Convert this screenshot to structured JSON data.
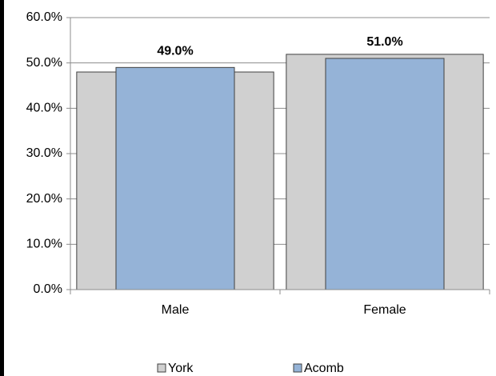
{
  "chart_data": {
    "type": "bar",
    "categories": [
      "Male",
      "Female"
    ],
    "series": [
      {
        "name": "York",
        "color": "#d0d0d0",
        "values": [
          48.0,
          51.9
        ]
      },
      {
        "name": "Acomb",
        "color": "#95b3d7",
        "values": [
          49.0,
          51.0
        ],
        "value_labels": [
          "49.0%",
          "51.0%"
        ]
      }
    ],
    "ylim": [
      0,
      60
    ],
    "yticks": [
      {
        "value": 0,
        "label": "0.0%"
      },
      {
        "value": 10,
        "label": "10.0%"
      },
      {
        "value": 20,
        "label": "20.0%"
      },
      {
        "value": 30,
        "label": "30.0%"
      },
      {
        "value": 40,
        "label": "40.0%"
      },
      {
        "value": 50,
        "label": "50.0%"
      },
      {
        "value": 60,
        "label": "60.0%"
      }
    ],
    "grid": true,
    "legend": "bottom"
  }
}
